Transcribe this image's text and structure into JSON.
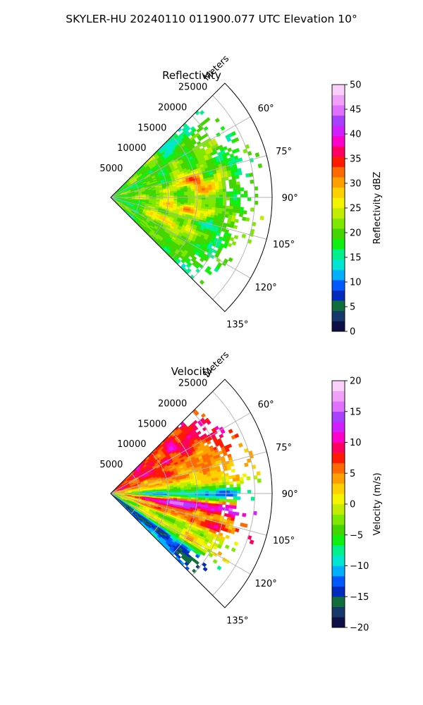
{
  "figure": {
    "suptitle": "SKYLER-HU  20240110  011900.077 UTC Elevation 10°"
  },
  "chart_data": [
    {
      "type": "heatmap",
      "subtype": "polar-sector",
      "title": "Reflectivity",
      "radial_label": "Meters",
      "radial_ticks": [
        5000,
        10000,
        15000,
        20000,
        25000
      ],
      "r_max": 28000,
      "azimuth_range_deg": [
        45,
        135
      ],
      "azimuth_ticks": [
        "60°",
        "75°",
        "90°",
        "105°",
        "120°",
        "135°"
      ],
      "azimuth_tick_values": [
        60,
        75,
        90,
        105,
        120,
        135
      ],
      "data_extent_m": 24000,
      "grid": true,
      "colorbar": {
        "label": "Reflectivity dBZ",
        "range": [
          0,
          50
        ],
        "ticks": [
          "0",
          "5",
          "10",
          "15",
          "20",
          "25",
          "30",
          "35",
          "40",
          "45",
          "50"
        ],
        "tick_values": [
          0,
          5,
          10,
          15,
          20,
          25,
          30,
          35,
          40,
          45,
          50
        ],
        "colors": [
          "#0d0f46",
          "#16386a",
          "#0f6e3a",
          "#002bbd",
          "#0059ff",
          "#00b0ff",
          "#00e6d2",
          "#00f08c",
          "#10f010",
          "#44d400",
          "#7ee800",
          "#c2ec00",
          "#f4f400",
          "#ffd000",
          "#ffa000",
          "#ff6a00",
          "#ff1a00",
          "#ff0060",
          "#ff00c8",
          "#d020ff",
          "#a840ff",
          "#e070ff",
          "#f0a0f8",
          "#fad0fa"
        ]
      }
    },
    {
      "type": "heatmap",
      "subtype": "polar-sector",
      "title": "Velocity",
      "radial_label": "Meters",
      "radial_ticks": [
        5000,
        10000,
        15000,
        20000,
        25000
      ],
      "r_max": 28000,
      "azimuth_range_deg": [
        45,
        135
      ],
      "azimuth_ticks": [
        "60°",
        "75°",
        "90°",
        "105°",
        "120°",
        "135°"
      ],
      "azimuth_tick_values": [
        60,
        75,
        90,
        105,
        120,
        135
      ],
      "data_extent_m": 24000,
      "grid": true,
      "colorbar": {
        "label": "Velocity (m/s)",
        "range": [
          -20,
          20
        ],
        "ticks": [
          "−20",
          "−15",
          "−10",
          "−5",
          "0",
          "5",
          "10",
          "15",
          "20"
        ],
        "tick_values": [
          -20,
          -15,
          -10,
          -5,
          0,
          5,
          10,
          15,
          20
        ],
        "colors": [
          "#0d0f46",
          "#16386a",
          "#0f6e3a",
          "#002bbd",
          "#0059ff",
          "#00b0ff",
          "#00e6d2",
          "#00f08c",
          "#10f010",
          "#44d400",
          "#7ee800",
          "#c2ec00",
          "#f4f400",
          "#ffd000",
          "#ffa000",
          "#ff6a00",
          "#ff1a00",
          "#ff0060",
          "#ff00c8",
          "#d020ff",
          "#a840ff",
          "#e070ff",
          "#f0a0f8",
          "#fad0fa"
        ]
      }
    }
  ]
}
